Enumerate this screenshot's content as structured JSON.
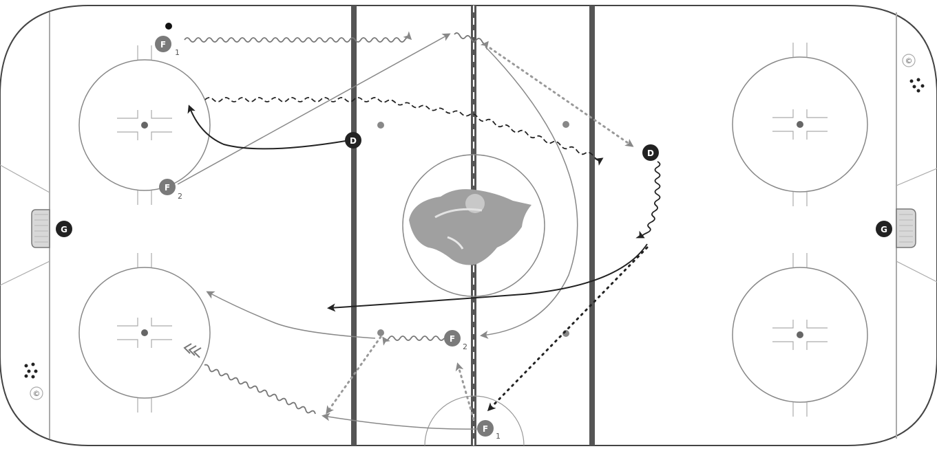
{
  "players": {
    "f1_top": {
      "letter": "F",
      "sub": "1",
      "role": "forward"
    },
    "f2_top": {
      "letter": "F",
      "sub": "2",
      "role": "forward"
    },
    "d_left": {
      "letter": "D",
      "role": "defense"
    },
    "d_right": {
      "letter": "D",
      "role": "defense"
    },
    "f2_bottom": {
      "letter": "F",
      "sub": "2",
      "role": "forward"
    },
    "f1_bottom": {
      "letter": "F",
      "sub": "1",
      "role": "forward"
    },
    "g_left": {
      "letter": "G",
      "role": "goalie"
    },
    "g_right": {
      "letter": "G",
      "role": "goalie"
    }
  },
  "boards_icon_text": {
    "left": "©",
    "right": "©"
  },
  "colors": {
    "dark_player": "#222222",
    "gray_player": "#7a7a7a",
    "lines": "#555555",
    "light_lines": "#9a9a9a",
    "logo": "#9e9e9e"
  },
  "legend_note": ""
}
